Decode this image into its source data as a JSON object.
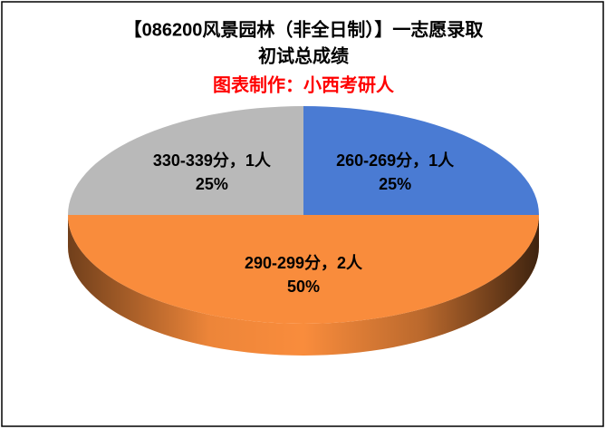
{
  "chart_data": {
    "type": "pie",
    "title": [
      "【086200风景园林（非全日制）】一志愿录取",
      "初试总成绩"
    ],
    "subtitle": "图表制作：小西考研人",
    "categories": [
      "260-269分，1人",
      "290-299分，2人",
      "330-339分，1人"
    ],
    "values": [
      25,
      50,
      25
    ],
    "value_labels": [
      "25%",
      "50%",
      "25%"
    ],
    "colors": [
      "#4a7bd3",
      "#f98c3c",
      "#b9b9b9"
    ],
    "subtitle_color": "#ff0000"
  }
}
